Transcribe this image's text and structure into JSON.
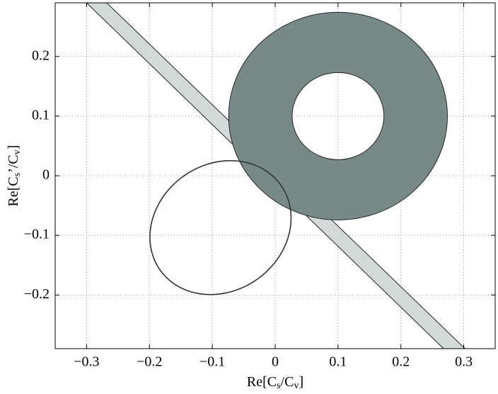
{
  "chart_data": {
    "type": "regions",
    "xlabel": {
      "parts": [
        "Re[C",
        "s",
        "/C",
        "v",
        "]"
      ]
    },
    "ylabel": {
      "parts": [
        "Re[C",
        "s",
        "’/C",
        "v",
        "]"
      ]
    },
    "xlim": [
      -0.35,
      0.35
    ],
    "ylim": [
      -0.29,
      0.29
    ],
    "xticks": [
      {
        "value": -0.3,
        "label": "−0.3"
      },
      {
        "value": -0.2,
        "label": "−0.2"
      },
      {
        "value": -0.1,
        "label": "−0.1"
      },
      0,
      0.1,
      0.2,
      0.3
    ],
    "yticks": [
      {
        "value": -0.2,
        "label": "−0.2"
      },
      {
        "value": -0.1,
        "label": "−0.1"
      },
      0,
      0.1,
      0.2
    ],
    "grid": true,
    "band": {
      "color": "#d2dad8",
      "points": [
        [
          -0.3,
          0.29
        ],
        [
          -0.268,
          0.29
        ],
        [
          0.302,
          -0.29
        ],
        [
          0.268,
          -0.29
        ]
      ]
    },
    "annulus": {
      "color": "#778a88",
      "center": [
        0.1,
        0.1
      ],
      "outer_radius": 0.174,
      "inner_radius": 0.073
    },
    "ellipse": {
      "color": "#333333",
      "center": [
        -0.087,
        -0.087
      ],
      "semi_axes": [
        0.12,
        0.104
      ],
      "angle": 45
    }
  }
}
